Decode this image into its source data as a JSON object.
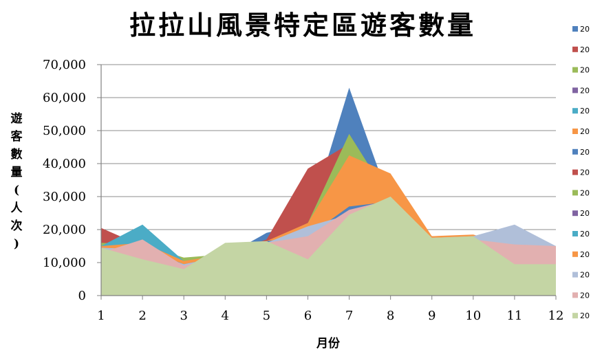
{
  "chart_data": {
    "type": "area",
    "title": "拉拉山風景特定區遊客數量",
    "xlabel": "月份",
    "ylabel": "遊客數量(人次)",
    "x": [
      1,
      2,
      3,
      4,
      5,
      6,
      7,
      8,
      9,
      10,
      11,
      12
    ],
    "x_tick_labels": [
      "1",
      "2",
      "3",
      "4",
      "5",
      "6",
      "7",
      "8",
      "9",
      "10",
      "11",
      "12"
    ],
    "ylim": [
      0,
      70000
    ],
    "y_ticks": [
      0,
      10000,
      20000,
      30000,
      40000,
      50000,
      60000,
      70000
    ],
    "y_tick_labels": [
      "0",
      "10,000",
      "20,000",
      "30,000",
      "40,000",
      "50,000",
      "60,000",
      "70,000"
    ],
    "grid": "horizontal",
    "legend_position": "right",
    "series": [
      {
        "name": "20",
        "color": "#4f81bd",
        "values": [
          15500,
          14000,
          10000,
          12000,
          19000,
          22000,
          63000,
          28000,
          18000,
          18000,
          16000,
          15000
        ]
      },
      {
        "name": "20",
        "color": "#c0504d",
        "values": [
          20500,
          15000,
          10500,
          12500,
          17000,
          38500,
          46000,
          30000,
          18000,
          18000,
          15500,
          15000
        ]
      },
      {
        "name": "20",
        "color": "#9bbb59",
        "values": [
          16000,
          15500,
          11500,
          12500,
          16000,
          22000,
          49000,
          29000,
          18000,
          18000,
          15500,
          15000
        ]
      },
      {
        "name": "20",
        "color": "#8064a2",
        "values": [
          15000,
          15500,
          10000,
          12500,
          16500,
          20000,
          27500,
          28500,
          18000,
          18000,
          15500,
          15000
        ]
      },
      {
        "name": "20",
        "color": "#4bacc6",
        "values": [
          15000,
          21500,
          10500,
          12500,
          16500,
          20000,
          27000,
          28500,
          18000,
          18000,
          15500,
          15000
        ]
      },
      {
        "name": "20",
        "color": "#f79646",
        "values": [
          15000,
          16000,
          10500,
          12500,
          16500,
          22000,
          42500,
          37000,
          18000,
          18000,
          15500,
          15000
        ]
      },
      {
        "name": "20",
        "color": "#4f81bd",
        "values": [
          13000,
          14500,
          9500,
          12000,
          16500,
          18000,
          27000,
          28500,
          17500,
          18000,
          15500,
          15000
        ]
      },
      {
        "name": "20",
        "color": "#c0504d",
        "values": [
          14000,
          13500,
          9000,
          11500,
          16000,
          16500,
          26000,
          28500,
          17500,
          17500,
          15000,
          15000
        ]
      },
      {
        "name": "20",
        "color": "#9bbb59",
        "values": [
          13500,
          13000,
          9000,
          11500,
          16000,
          16000,
          25500,
          28500,
          17500,
          17500,
          15000,
          15000
        ]
      },
      {
        "name": "20",
        "color": "#8064a2",
        "values": [
          13000,
          12500,
          9000,
          11500,
          16000,
          15500,
          25000,
          29000,
          17500,
          17500,
          15000,
          15000
        ]
      },
      {
        "name": "20",
        "color": "#4bacc6",
        "values": [
          13000,
          12000,
          8500,
          11500,
          16000,
          15000,
          25000,
          29000,
          17500,
          17500,
          15000,
          15000
        ]
      },
      {
        "name": "20",
        "color": "#f79646",
        "values": [
          13500,
          12000,
          8500,
          11000,
          16000,
          14500,
          24500,
          29000,
          18000,
          18500,
          15000,
          15000
        ]
      },
      {
        "name": "20",
        "color": "#b0bfd9",
        "values": [
          14500,
          14000,
          9500,
          12000,
          16000,
          21000,
          24500,
          28500,
          17500,
          18000,
          21500,
          15000
        ]
      },
      {
        "name": "20",
        "color": "#e2b0b0",
        "values": [
          13000,
          17000,
          9000,
          12500,
          16000,
          18000,
          26000,
          29000,
          17500,
          17000,
          15500,
          15000
        ]
      },
      {
        "name": "20",
        "color": "#c4d5a4",
        "values": [
          14500,
          11000,
          8000,
          16000,
          16500,
          11000,
          24500,
          30000,
          17500,
          18000,
          9500,
          9500
        ]
      }
    ]
  }
}
